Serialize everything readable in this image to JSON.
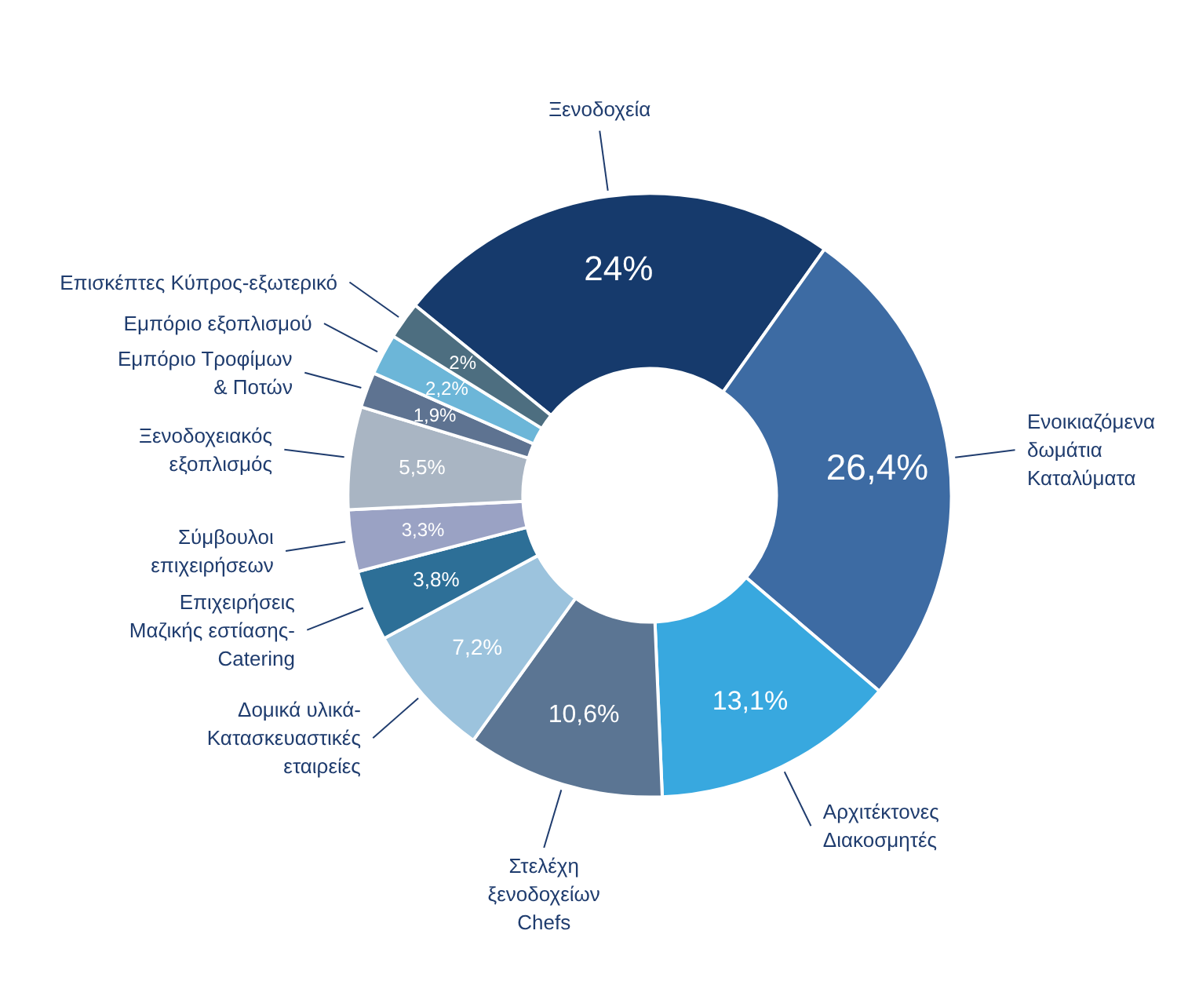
{
  "chart_data": {
    "type": "donut",
    "categories": [
      "Ξενοδοχεία",
      "Ενοικιαζόμενα\nδωμάτια\nΚαταλύματα",
      "Αρχιτέκτονες\nΔιακοσμητές",
      "Στελέχη\nξενοδοχείων\nChefs",
      "Δομικά υλικά-\nΚατασκευαστικές\nεταιρείες",
      "Επιχειρήσεις\nΜαζικής εστίασης-\nCatering",
      "Σύμβουλοι\nεπιχειρήσεων",
      "Ξενοδοχειακός\nεξοπλισμός",
      "Εμπόριο Τροφίμων\n& Ποτών",
      "Εμπόριο εξοπλισμού",
      "Επισκέπτες Κύπρος-εξωτερικό"
    ],
    "values": [
      24,
      26.4,
      13.1,
      10.6,
      7.2,
      3.8,
      3.3,
      5.5,
      1.9,
      2.2,
      2
    ],
    "value_labels": [
      "24%",
      "26,4%",
      "13,1%",
      "10,6%",
      "7,2%",
      "3,8%",
      "3,3%",
      "5,5%",
      "1,9%",
      "2,2%",
      "2%"
    ],
    "colors": [
      "#163a6c",
      "#3d6ba3",
      "#38a8df",
      "#5b7593",
      "#9cc3dd",
      "#2d6f97",
      "#9aa2c4",
      "#a9b5c3",
      "#5e7391",
      "#6cb6d8",
      "#4d6e80"
    ],
    "legend": false
  }
}
